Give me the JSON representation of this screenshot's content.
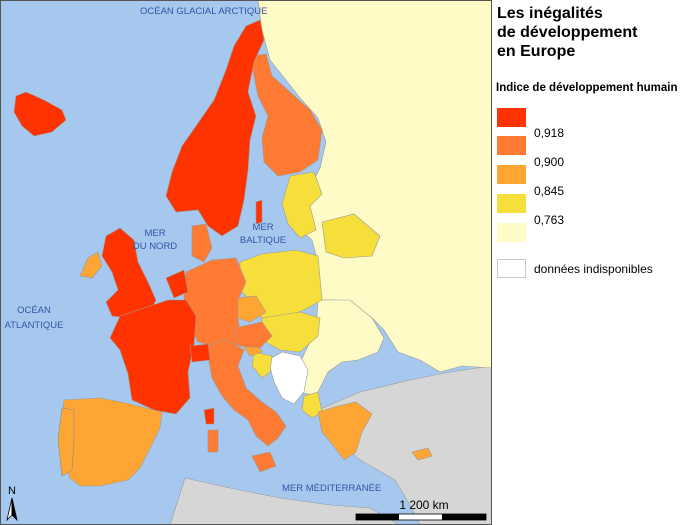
{
  "title": {
    "line1": "Les inégalités",
    "line2": "de développement",
    "line3": "en Europe"
  },
  "legend": {
    "heading": "Indice de développement humain",
    "classes": [
      {
        "color": "#ff3300",
        "label": "0,918"
      },
      {
        "color": "#ff7a33",
        "label": "0,900"
      },
      {
        "color": "#ffa533",
        "label": "0,845"
      },
      {
        "color": "#f7df3b",
        "label": "0,763"
      },
      {
        "color": "#fffbc6",
        "label": ""
      }
    ],
    "unavailable": {
      "color": "#ffffff",
      "label": "données indisponibles"
    }
  },
  "map": {
    "sea_color": "#a6c8ef",
    "outside_land_color": "#d6d6d6",
    "labels": {
      "arctic": "OCÉAN GLACIAL ARCTIQUE",
      "north_sea_1": "MER",
      "north_sea_2": "DU NORD",
      "baltic_1": "MER",
      "baltic_2": "BALTIQUE",
      "atlantic_1": "OCÉAN",
      "atlantic_2": "ATLANTIQUE",
      "mediterranean": "MER MÉDITERRANÉE"
    },
    "north_arrow": "N",
    "scale_label": "1 200 km"
  }
}
